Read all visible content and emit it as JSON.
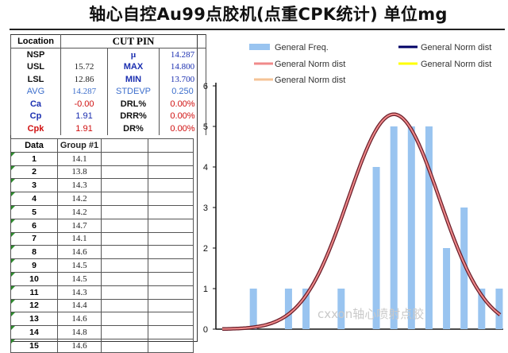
{
  "title": "轴心自控Au99点胶机(点重CPK统计) 单位mg",
  "stats": {
    "location_label": "Location",
    "location_value": "CUT PIN",
    "rows": [
      {
        "label": "NSP",
        "value": "",
        "label2": "μ",
        "value2": "14.287"
      },
      {
        "label": "USL",
        "value": "15.72",
        "label2": "MAX",
        "value2": "14.800"
      },
      {
        "label": "LSL",
        "value": "12.86",
        "label2": "MIN",
        "value2": "13.700"
      },
      {
        "label": "AVG",
        "value": "14.287",
        "label2": "STDEVP",
        "value2": "0.250"
      },
      {
        "label": "Ca",
        "value": "-0.00",
        "label2": "DRL%",
        "value2": "0.00%"
      },
      {
        "label": "Cp",
        "value": "1.91",
        "label2": "DRR%",
        "value2": "0.00%"
      },
      {
        "label": "Cpk",
        "value": "1.91",
        "label2": "DR%",
        "value2": "0.00%"
      }
    ]
  },
  "data_table": {
    "headers": [
      "Data",
      "Group #1"
    ],
    "rows": [
      {
        "index": "1",
        "value": "14.1"
      },
      {
        "index": "2",
        "value": "13.8"
      },
      {
        "index": "3",
        "value": "14.3"
      },
      {
        "index": "4",
        "value": "14.2"
      },
      {
        "index": "5",
        "value": "14.2"
      },
      {
        "index": "6",
        "value": "14.7"
      },
      {
        "index": "7",
        "value": "14.1"
      },
      {
        "index": "8",
        "value": "14.6"
      },
      {
        "index": "9",
        "value": "14.5"
      },
      {
        "index": "10",
        "value": "14.5"
      },
      {
        "index": "11",
        "value": "14.3"
      },
      {
        "index": "12",
        "value": "14.4"
      },
      {
        "index": "13",
        "value": "14.6"
      },
      {
        "index": "14",
        "value": "14.8"
      },
      {
        "index": "15",
        "value": "14.6"
      }
    ]
  },
  "chart_data": {
    "type": "bar",
    "values": [
      0,
      1,
      0,
      1,
      1,
      0,
      1,
      0,
      4,
      5,
      5,
      5,
      2,
      3,
      1,
      1
    ],
    "ylim": [
      0,
      6
    ],
    "yticks": [
      "0",
      "1",
      "2",
      "3",
      "4",
      "5",
      "6"
    ],
    "curve": {
      "mean_index": 9.0,
      "sigma_index": 2.6,
      "peak": 5.3
    },
    "series": [
      {
        "name": "General Freq.",
        "type": "bar",
        "color": "#99c4f0"
      },
      {
        "name": "General Norm dist",
        "type": "line",
        "color": "#000066"
      },
      {
        "name": "General Norm dist",
        "type": "line",
        "color": "#f08a8a"
      },
      {
        "name": "General Norm dist",
        "type": "line",
        "color": "#ffff00"
      },
      {
        "name": "General Norm dist",
        "type": "line",
        "color": "#f5c396"
      }
    ],
    "grid": false
  },
  "watermark": "cxxon轴心喷射点胶",
  "colors": {
    "bar": "#99c4f0",
    "curve_outer": "#6a1e2a",
    "curve_inner": "#f08a8a",
    "blue_text": "#1b2fb0",
    "red_text": "#d01010"
  }
}
